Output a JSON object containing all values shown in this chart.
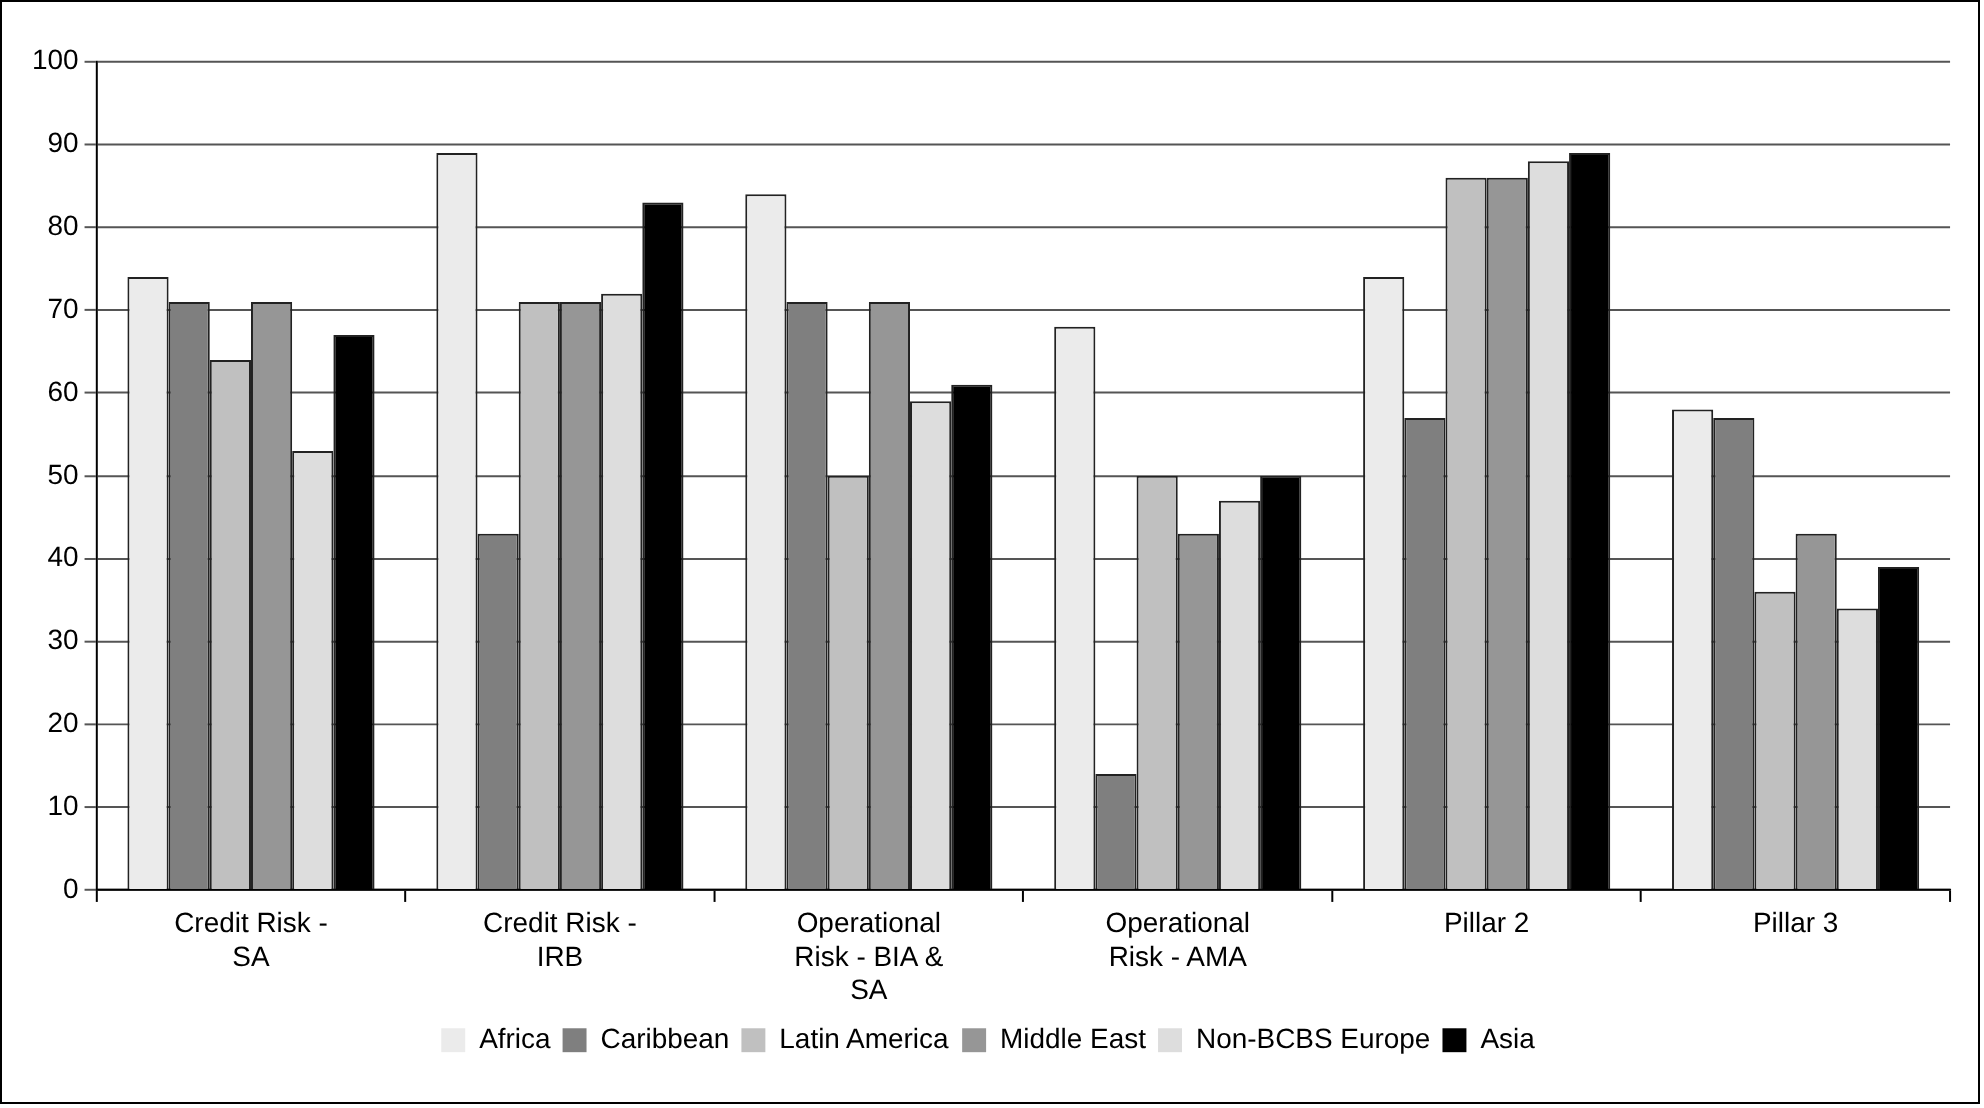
{
  "chart_data": {
    "type": "bar",
    "categories": [
      "Credit Risk - SA",
      "Credit Risk - IRB",
      "Operational Risk - BIA & SA",
      "Operational Risk - AMA",
      "Pillar 2",
      "Pillar 3"
    ],
    "series": [
      {
        "name": "Africa",
        "color": "#ebebeb",
        "values": [
          74,
          89,
          84,
          68,
          74,
          58
        ]
      },
      {
        "name": "Caribbean",
        "color": "#7f7f7f",
        "values": [
          71,
          43,
          71,
          14,
          57,
          57
        ]
      },
      {
        "name": "Latin America",
        "color": "#c0c0c0",
        "values": [
          64,
          71,
          50,
          50,
          86,
          36
        ]
      },
      {
        "name": "Middle East",
        "color": "#969696",
        "values": [
          71,
          71,
          71,
          43,
          86,
          43
        ]
      },
      {
        "name": "Non-BCBS Europe",
        "color": "#dddddd",
        "values": [
          53,
          72,
          59,
          47,
          88,
          34
        ]
      },
      {
        "name": "Asia",
        "color": "#000000",
        "values": [
          67,
          83,
          61,
          50,
          89,
          39
        ]
      }
    ],
    "ylim": [
      0,
      100
    ],
    "yticks": [
      0,
      10,
      20,
      30,
      40,
      50,
      60,
      70,
      80,
      90,
      100
    ],
    "grid": "y",
    "legend": "bottom"
  }
}
